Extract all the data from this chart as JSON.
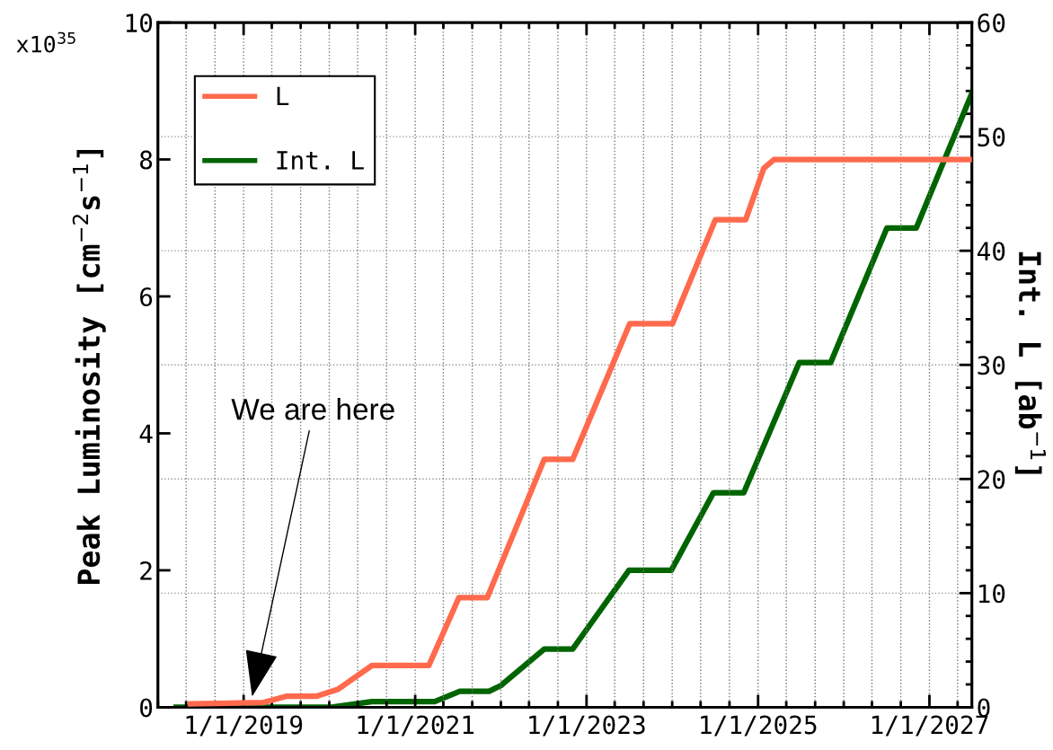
{
  "chart_data": {
    "type": "line",
    "ylabel": "Peak Luminosity [cm$^{−2}$s$^{−1}$]",
    "y2label": "Int. L [ab$^{−1}$]",
    "annotations": [
      "We are here",
      "x10$^{35}$"
    ],
    "series": [
      {
        "name": "L",
        "color": "#ff6a4d",
        "x": [
          "2018-05-20",
          "2019-03-28",
          "2019-07-01",
          "2019-11-06",
          "2020-02-06",
          "2020-07-01",
          "2021-02-28",
          "2021-07-06",
          "2021-11-04",
          "2022-07-05",
          "2022-11-03",
          "2023-07-04",
          "2024-01-02",
          "2024-07-03",
          "2024-11-09",
          "2025-01-25",
          "2025-03-10",
          "2027-07-01"
        ],
        "values": [
          0.05,
          0.07,
          0.16,
          0.16,
          0.26,
          0.61,
          0.61,
          1.6,
          1.6,
          3.62,
          3.62,
          5.6,
          5.6,
          7.12,
          7.12,
          7.87,
          8.0,
          8.0
        ]
      },
      {
        "name": "Int. L",
        "color": "#006400",
        "axis": "y2",
        "x": [
          "2018-03-20",
          "2020-01-10",
          "2020-07-01",
          "2021-03-25",
          "2021-07-10",
          "2021-11-12",
          "2022-01-01",
          "2022-07-05",
          "2022-11-03",
          "2023-01-01",
          "2023-07-01",
          "2023-12-28",
          "2024-06-25",
          "2024-11-01",
          "2025-06-25",
          "2025-11-06",
          "2026-07-04",
          "2026-11-06",
          "2027-07-01"
        ],
        "values": [
          0,
          0,
          0.5,
          0.5,
          1.4,
          1.4,
          1.9,
          5.1,
          5.1,
          6.8,
          12.0,
          12.0,
          18.8,
          18.8,
          30.2,
          30.2,
          42.0,
          42.0,
          53.8
        ]
      }
    ],
    "xlim": [
      "2018-01-01",
      "2027-07-01"
    ],
    "xticks": [
      {
        "value": "2019-01-01",
        "label": "1/1/2019"
      },
      {
        "value": "2021-01-01",
        "label": "1/1/2021"
      },
      {
        "value": "2023-01-01",
        "label": "1/1/2023"
      },
      {
        "value": "2025-01-01",
        "label": "1/1/2025"
      },
      {
        "value": "2027-01-01",
        "label": "1/1/2027"
      }
    ],
    "ylim": [
      0,
      10
    ],
    "yticks": [
      0,
      2,
      4,
      6,
      8,
      10
    ],
    "y2lim": [
      0,
      60
    ],
    "y2ticks": [
      0,
      10,
      20,
      30,
      40,
      50,
      60
    ],
    "grid": true,
    "legend": "top left",
    "line_style": "solid",
    "marker": "none"
  }
}
